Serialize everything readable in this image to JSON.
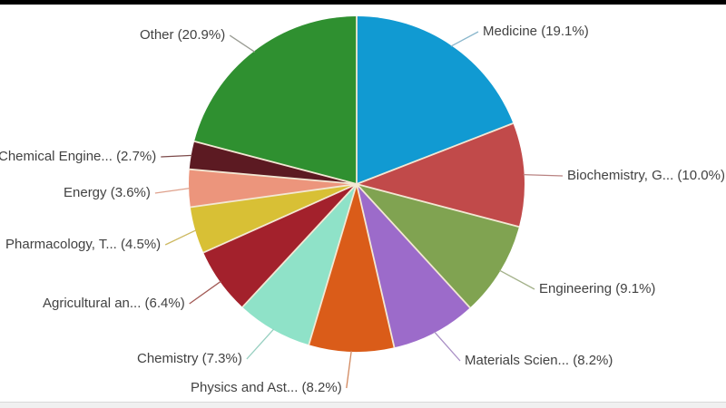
{
  "page": {
    "background_color": "#ffffff",
    "top_bar_color": "#000000",
    "bottom_strip_color": "#f0f0f0"
  },
  "chart_data": {
    "type": "pie",
    "unit": "%",
    "start_angle": "12-oclock",
    "direction": "clockwise",
    "divider_color": "#f3e8d4",
    "label_text_color": "#424242",
    "total": 100.0,
    "slices": [
      {
        "label": "Medicine",
        "display": "Medicine (19.1%)",
        "value": 19.1,
        "color": "#119ad2",
        "leader_color": "#8ab7cc"
      },
      {
        "label": "Biochemistry, G...",
        "display": "Biochemistry, G... (10.0%)",
        "value": 10.0,
        "color": "#c14a4a",
        "leader_color": "#b98382"
      },
      {
        "label": "Engineering",
        "display": "Engineering (9.1%)",
        "value": 9.1,
        "color": "#80a351",
        "leader_color": "#a3b18a"
      },
      {
        "label": "Materials Scien...",
        "display": "Materials Scien... (8.2%)",
        "value": 8.2,
        "color": "#9c6bca",
        "leader_color": "#a98fc5"
      },
      {
        "label": "Physics and Ast...",
        "display": "Physics and Ast... (8.2%)",
        "value": 8.2,
        "color": "#da5c19",
        "leader_color": "#d2885e"
      },
      {
        "label": "Chemistry",
        "display": "Chemistry (7.3%)",
        "value": 7.3,
        "color": "#8fe2c8",
        "leader_color": "#96cfc0"
      },
      {
        "label": "Agricultural an...",
        "display": "Agricultural an... (6.4%)",
        "value": 6.4,
        "color": "#a3212c",
        "leader_color": "#a25a55"
      },
      {
        "label": "Pharmacology, T...",
        "display": "Pharmacology, T... (4.5%)",
        "value": 4.5,
        "color": "#d8c035",
        "leader_color": "#cdb961"
      },
      {
        "label": "Energy",
        "display": "Energy (3.6%)",
        "value": 3.6,
        "color": "#ec957c",
        "leader_color": "#dfa18c"
      },
      {
        "label": "Chemical Engine...",
        "display": "Chemical Engine... (2.7%)",
        "value": 2.7,
        "color": "#5c1a22",
        "leader_color": "#7c4a4a"
      },
      {
        "label": "Other",
        "display": "Other (20.9%)",
        "value": 20.9,
        "color": "#2f9030",
        "leader_color": "#9a9c94"
      }
    ]
  }
}
